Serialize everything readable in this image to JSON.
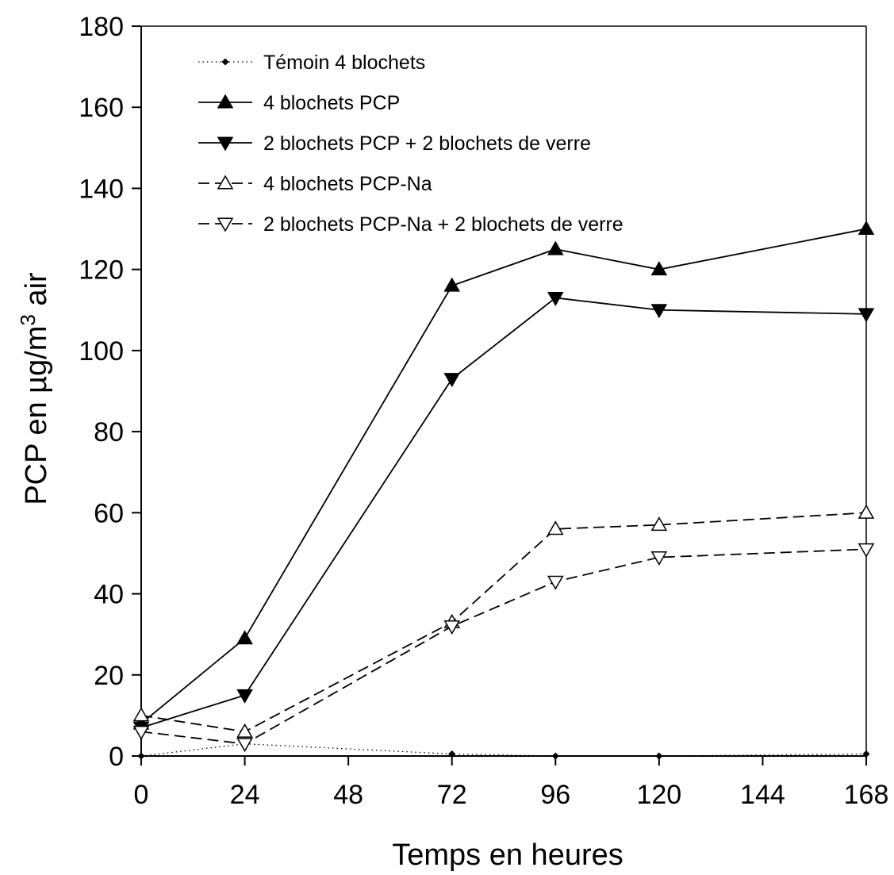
{
  "chart_data": {
    "type": "line",
    "xlabel": "Temps en heures",
    "ylabel": "PCP en µg/m",
    "ylabel_sup": "3",
    "ylabel_suffix": " air",
    "xlim": [
      0,
      168
    ],
    "ylim": [
      0,
      180
    ],
    "xticks": [
      0,
      24,
      48,
      72,
      96,
      120,
      144,
      168
    ],
    "yticks": [
      0,
      20,
      40,
      60,
      80,
      100,
      120,
      140,
      160,
      180
    ],
    "grid": false,
    "legend_position": "top-left",
    "series": [
      {
        "name": "Témoin 4 blochets",
        "marker": "diamond-small",
        "line": "dotted",
        "x": [
          0,
          24,
          72,
          96,
          120,
          168
        ],
        "y": [
          0,
          3,
          0.5,
          0,
          0,
          0.5
        ]
      },
      {
        "name": "4 blochets PCP",
        "marker": "triangle-up-filled",
        "line": "solid",
        "x": [
          0,
          24,
          72,
          96,
          120,
          168
        ],
        "y": [
          8,
          29,
          116,
          125,
          120,
          130
        ]
      },
      {
        "name": "2 blochets PCP + 2 blochets de verre",
        "marker": "triangle-down-filled",
        "line": "solid",
        "x": [
          0,
          24,
          72,
          96,
          120,
          168
        ],
        "y": [
          7,
          15,
          93,
          113,
          110,
          109
        ]
      },
      {
        "name": "4 blochets PCP-Na",
        "marker": "triangle-up-open",
        "line": "dashed",
        "x": [
          0,
          24,
          72,
          96,
          120,
          168
        ],
        "y": [
          10,
          6,
          33,
          56,
          57,
          60
        ]
      },
      {
        "name": "2 blochets PCP-Na + 2 blochets de verre",
        "marker": "triangle-down-open",
        "line": "dashed",
        "x": [
          0,
          24,
          72,
          96,
          120,
          168
        ],
        "y": [
          6,
          3,
          32,
          43,
          49,
          51
        ]
      }
    ]
  }
}
